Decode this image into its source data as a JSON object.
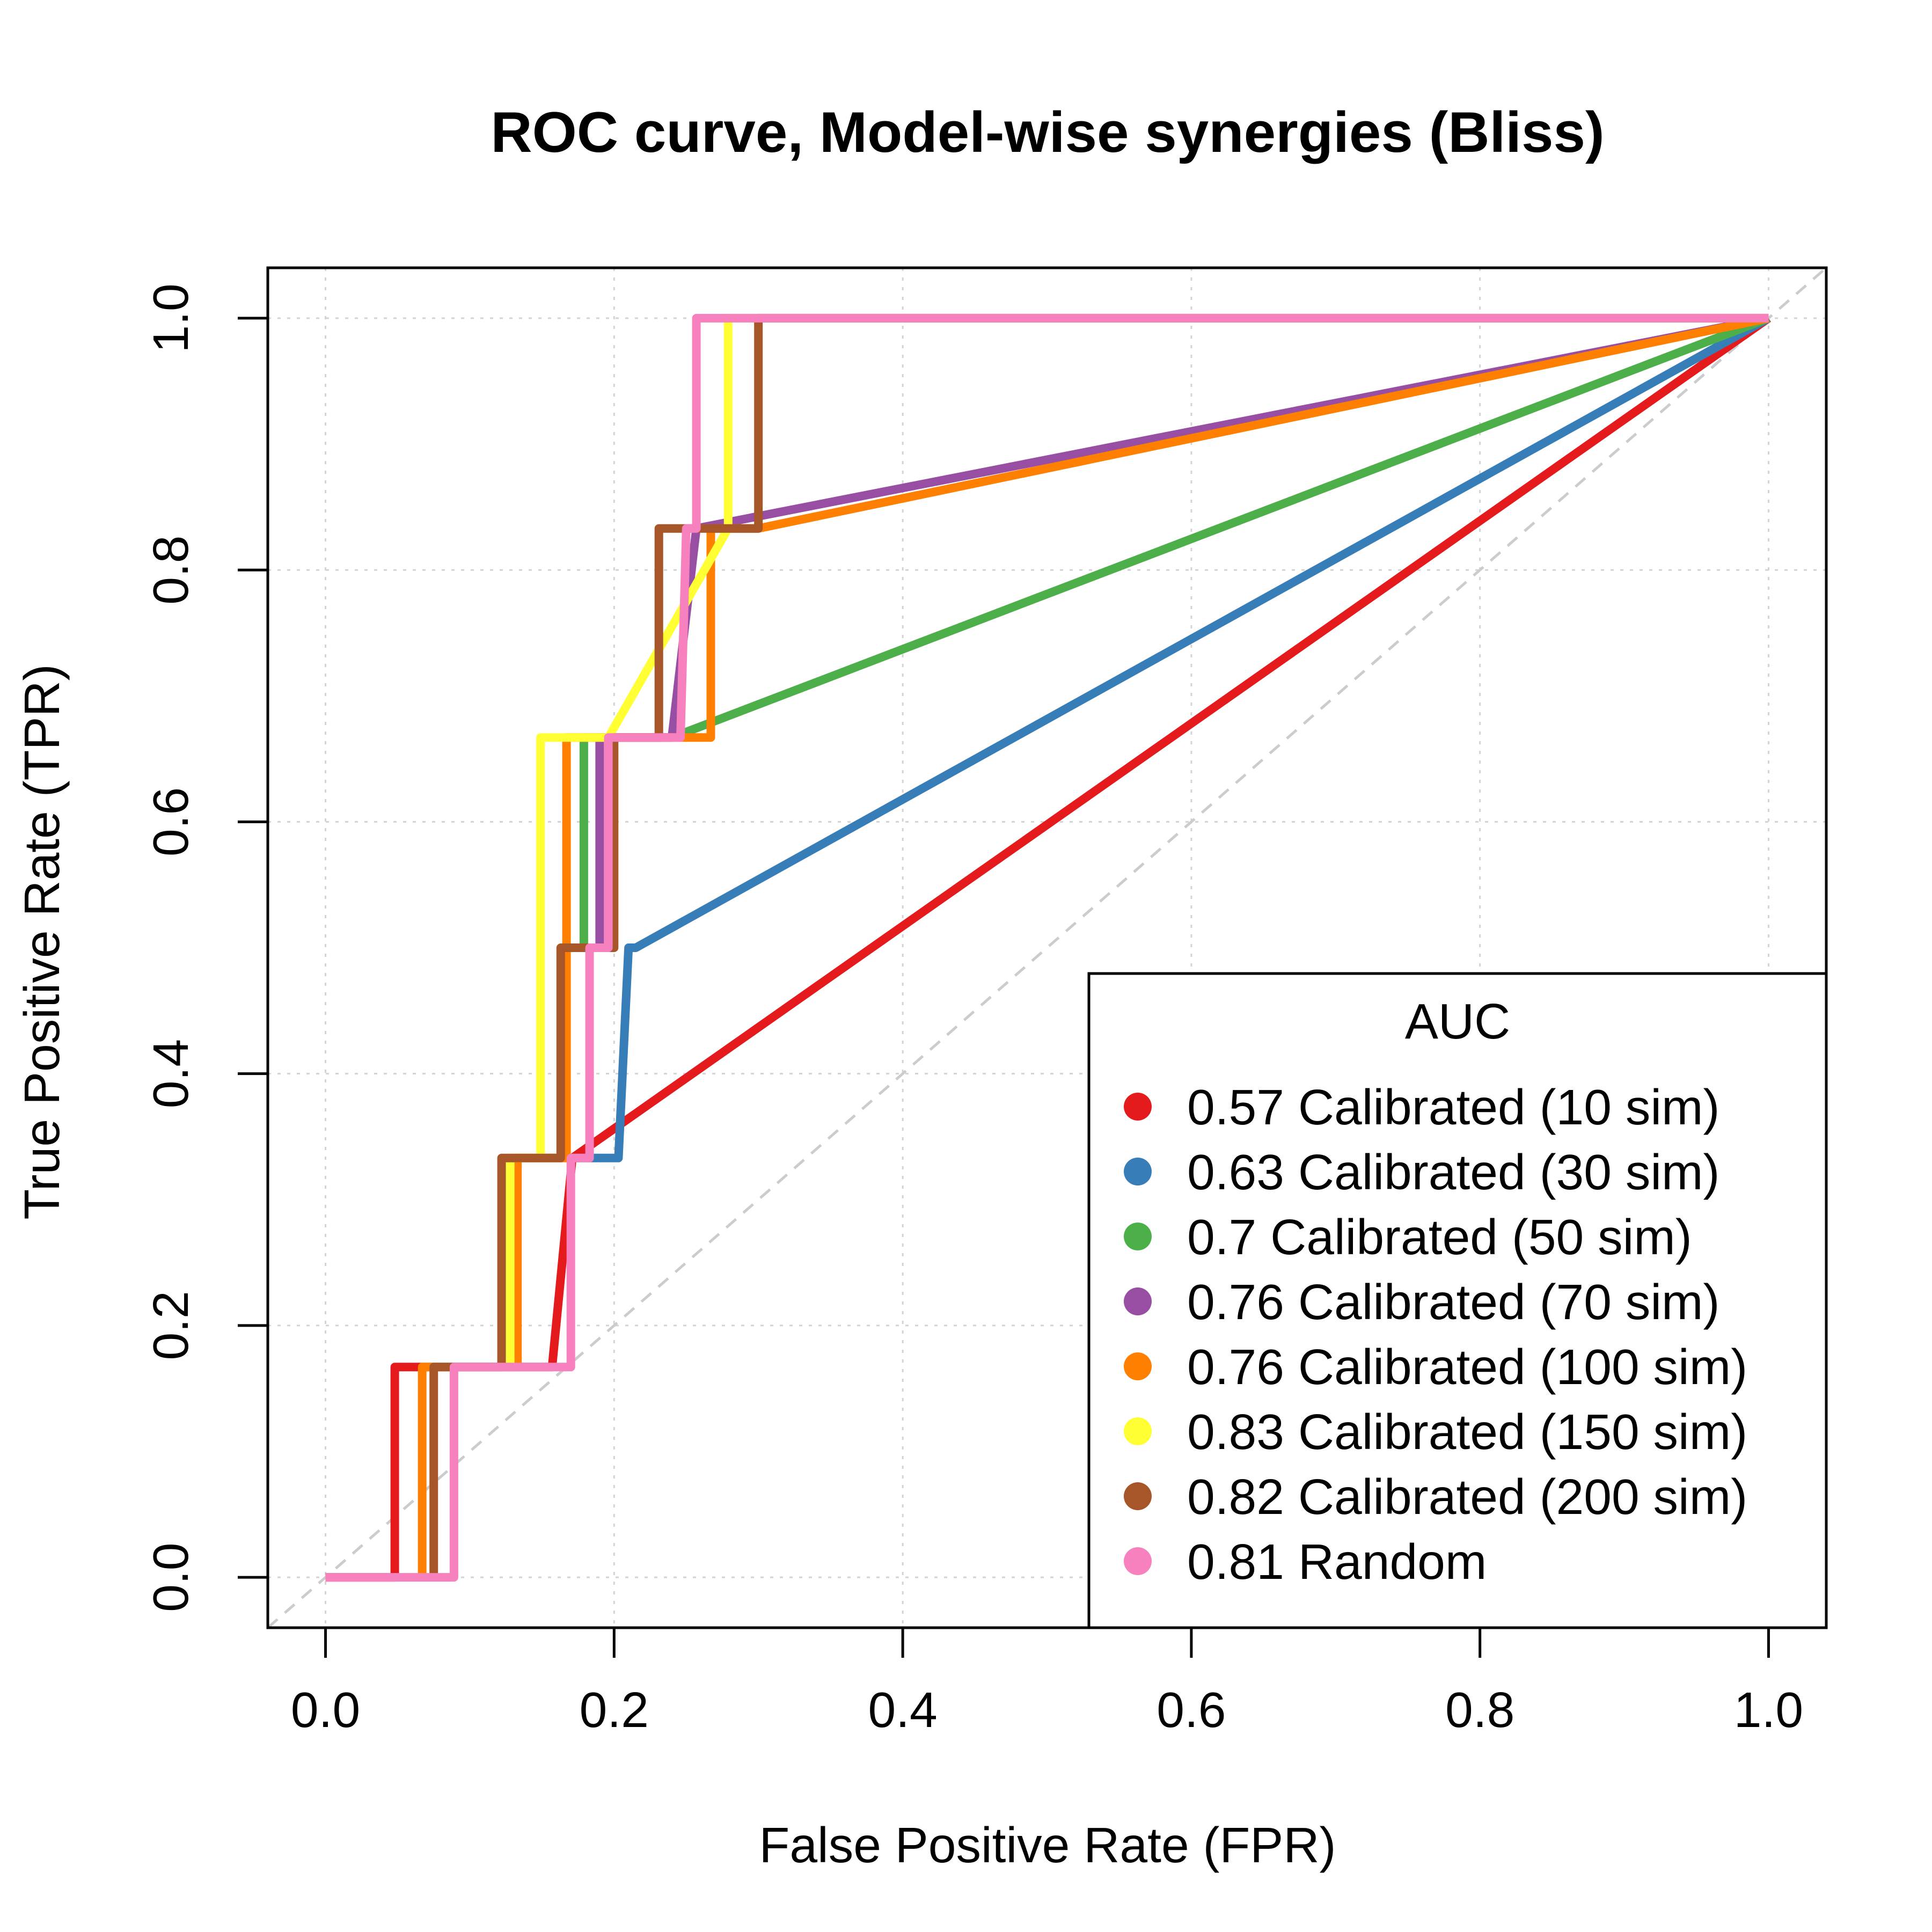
{
  "chart_data": {
    "type": "line",
    "title": "ROC curve, Model-wise synergies (Bliss)",
    "xlabel": "False Positive Rate (FPR)",
    "ylabel": "True Positive Rate (TPR)",
    "xlim": [
      -0.04,
      1.04
    ],
    "ylim": [
      -0.04,
      1.04
    ],
    "xticks": [
      0.0,
      0.2,
      0.4,
      0.6,
      0.8,
      1.0
    ],
    "yticks": [
      0.0,
      0.2,
      0.4,
      0.6,
      0.8,
      1.0
    ],
    "xtick_labels": [
      "0.0",
      "0.2",
      "0.4",
      "0.6",
      "0.8",
      "1.0"
    ],
    "ytick_labels": [
      "0.0",
      "0.2",
      "0.4",
      "0.6",
      "0.8",
      "1.0"
    ],
    "grid": true,
    "reference_line": {
      "x": [
        0,
        1
      ],
      "y": [
        0,
        1
      ],
      "color": "#cccccc",
      "style": "dashed"
    },
    "legend": {
      "title": "AUC",
      "position": "bottom-right"
    },
    "series": [
      {
        "name": "0.57 Calibrated (10 sim)",
        "color": "#E41A1C",
        "x": [
          0,
          0.048,
          0.048,
          0.157,
          0.171,
          1
        ],
        "y": [
          0,
          0,
          0.167,
          0.167,
          0.333,
          1
        ]
      },
      {
        "name": "0.63 Calibrated (30 sim)",
        "color": "#377EB8",
        "x": [
          0.171,
          0.203,
          0.21,
          0.215,
          1
        ],
        "y": [
          0.333,
          0.333,
          0.5,
          0.5,
          1
        ]
      },
      {
        "name": "0.7 Calibrated (50 sim)",
        "color": "#4DAF4A",
        "x": [
          0.179,
          0.179,
          0.24,
          1
        ],
        "y": [
          0.5,
          0.667,
          0.667,
          1
        ]
      },
      {
        "name": "0.76 Calibrated (70 sim)",
        "color": "#984EA3",
        "x": [
          0.19,
          0.19,
          0.24,
          0.257,
          1
        ],
        "y": [
          0.5,
          0.667,
          0.667,
          0.833,
          1
        ]
      },
      {
        "name": "0.76 Calibrated (100 sim)",
        "color": "#FF7F00",
        "x": [
          0.067,
          0.067,
          0.133,
          0.133,
          0.167,
          0.167,
          0.2,
          0.267,
          0.267,
          0.3,
          1
        ],
        "y": [
          0,
          0.167,
          0.167,
          0.333,
          0.333,
          0.667,
          0.667,
          0.667,
          0.833,
          0.833,
          1
        ]
      },
      {
        "name": "0.83 Calibrated (150 sim)",
        "color": "#FFFF33",
        "x": [
          0.128,
          0.128,
          0.149,
          0.149,
          0.196,
          0.279,
          0.279,
          1
        ],
        "y": [
          0.167,
          0.333,
          0.333,
          0.667,
          0.667,
          0.833,
          1,
          1
        ]
      },
      {
        "name": "0.82 Calibrated (200 sim)",
        "color": "#A65628",
        "x": [
          0.075,
          0.075,
          0.122,
          0.122,
          0.163,
          0.163,
          0.2,
          0.2,
          0.231,
          0.231,
          0.3,
          0.3,
          1
        ],
        "y": [
          0,
          0.167,
          0.167,
          0.333,
          0.333,
          0.5,
          0.5,
          0.667,
          0.667,
          0.833,
          0.833,
          1,
          1
        ]
      },
      {
        "name": "0.81 Random",
        "color": "#F781BF",
        "x": [
          0,
          0.089,
          0.089,
          0.17,
          0.17,
          0.183,
          0.183,
          0.196,
          0.196,
          0.246,
          0.25,
          0.257,
          0.257,
          1
        ],
        "y": [
          0,
          0,
          0.167,
          0.167,
          0.333,
          0.333,
          0.5,
          0.5,
          0.667,
          0.667,
          0.833,
          0.833,
          1,
          1
        ]
      }
    ]
  }
}
